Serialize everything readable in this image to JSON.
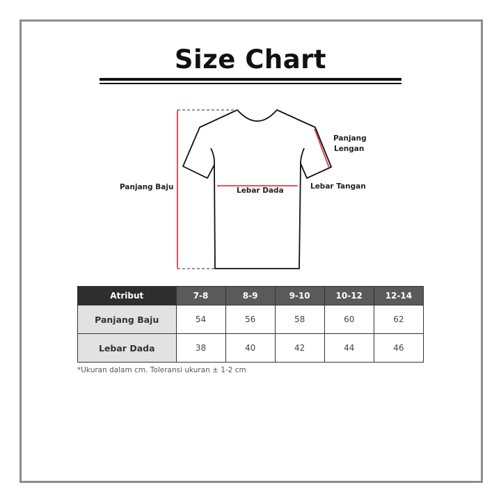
{
  "title": "Size Chart",
  "diagram": {
    "labels": {
      "body_length": "Panjang Baju",
      "chest_width": "Lebar Dada",
      "sleeve_width": "Lebar Tangan",
      "sleeve_length_1": "Panjang",
      "sleeve_length_2": "Lengan"
    },
    "measure_color": "#e8374a"
  },
  "table": {
    "header": [
      "Atribut",
      "7-8",
      "8-9",
      "9-10",
      "10-12",
      "12-14"
    ],
    "rows": [
      {
        "label": "Panjang Baju",
        "values": [
          "54",
          "56",
          "58",
          "60",
          "62"
        ]
      },
      {
        "label": "Lebar Dada",
        "values": [
          "38",
          "40",
          "42",
          "44",
          "46"
        ]
      }
    ]
  },
  "note": "*Ukuran dalam cm. Toleransi ukuran ± 1-2 cm"
}
